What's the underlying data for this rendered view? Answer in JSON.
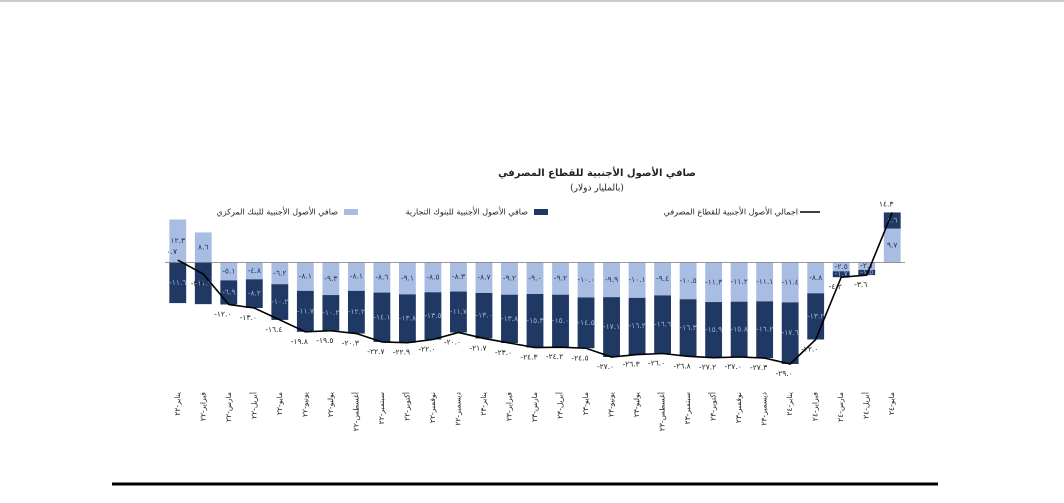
{
  "chart_data": {
    "type": "stacked-bar-line",
    "title": "صافي الأصول الأجنبية للقطاع المصرفي",
    "subtitle": "(بالمليار دولار)",
    "categories": [
      "يناير-٢٢",
      "فبراير-٢٢",
      "مارس-٢٢",
      "أبريل-٢٢",
      "مايو-٢٢",
      "يونيو-٢٢",
      "يوليو-٢٢",
      "أغسطس-٢٢",
      "سبتمبر-٢٢",
      "أكتوبر-٢٢",
      "نوفمبر-٢٢",
      "ديسمبر-٢٢",
      "يناير-٢٣",
      "فبراير-٢٣",
      "مارس-٢٣",
      "أبريل-٢٣",
      "مايو-٢٣",
      "يونيو-٢٣",
      "يوليو-٢٣",
      "أغسطس-٢٣",
      "سبتمبر-٢٣",
      "أكتوبر-٢٣",
      "نوفمبر-٢٣",
      "ديسمبر-٢٣",
      "يناير-٢٤",
      "فبراير-٢٤",
      "مارس-٢٤",
      "أبريل-٢٤",
      "مايو-٢٤"
    ],
    "series": [
      {
        "name": "صافي الأصول الأجنبية للبنك المركزي",
        "kind": "bar",
        "color": "#a9bde3",
        "values": [
          12.3,
          8.6,
          -5.1,
          -4.8,
          -6.2,
          -8.1,
          -9.3,
          -8.1,
          -8.6,
          -9.1,
          -8.5,
          -8.3,
          -8.7,
          -9.2,
          -9.0,
          -9.2,
          -10.0,
          -9.9,
          -10.1,
          -9.4,
          -10.5,
          -11.3,
          -11.2,
          -11.1,
          -11.4,
          -8.8,
          -2.5,
          -2.1,
          9.7
        ],
        "value_labels": [
          "١٢.٣",
          "٨.٦",
          "-٥.١",
          "-٤.٨",
          "-٦.٢",
          "-٨.١",
          "-٩.٣",
          "-٨.١",
          "-٨.٦",
          "-٩.١",
          "-٨.٥",
          "-٨.٣",
          "-٨.٧",
          "-٩.٢",
          "-٩.٠",
          "-٩.٢",
          "-١٠.٠",
          "-٩.٩",
          "-١٠.١",
          "-٩.٤",
          "-١٠.٥",
          "-١١.٣",
          "-١١.٢",
          "-١١.١",
          "-١١.٤",
          "-٨.٨",
          "-٢.٥",
          "-٢.١",
          "٩.٧"
        ]
      },
      {
        "name": "صافي الأصول الأجنبية للبنوك التجارية",
        "kind": "bar",
        "color": "#1f3864",
        "values": [
          -11.6,
          -11.9,
          -6.9,
          -8.2,
          -10.2,
          -11.7,
          -10.2,
          -12.2,
          -14.1,
          -13.8,
          -13.5,
          -11.7,
          -13.0,
          -13.8,
          -15.3,
          -15.0,
          -14.5,
          -17.1,
          -16.2,
          -16.6,
          -16.3,
          -15.9,
          -15.8,
          -16.2,
          -17.6,
          -13.2,
          -1.7,
          -1.5,
          4.6
        ],
        "value_labels": [
          "-١١.٦",
          "-١١.٩",
          "-٦.٩",
          "-٨.٢",
          "-١٠.٢",
          "-١١.٧",
          "-١٠.٢",
          "-١٢.٢",
          "-١٤.١",
          "-١٣.٨",
          "-١٣.٥",
          "-١١.٧",
          "-١٣.٠",
          "-١٣.٨",
          "-١٥.٣",
          "-١٥.٠",
          "-١٤.٥",
          "-١٧.١",
          "-١٦.٢",
          "-١٦.٦",
          "-١٦.٣",
          "-١٥.٩",
          "-١٥.٨",
          "-١٦.٢",
          "-١٧.٦",
          "-١٣.٢",
          "-١.٧",
          "-١.٥",
          "٤.٦"
        ]
      },
      {
        "name": "اجمالي الأصول الأجنبية للقطاع المصرفي",
        "kind": "line",
        "color": "#000000",
        "values": [
          0.7,
          -3.3,
          -12.0,
          -13.0,
          -16.4,
          -19.8,
          -19.5,
          -20.3,
          -22.7,
          -22.9,
          -22.0,
          -20.0,
          -21.7,
          -23.0,
          -24.3,
          -24.2,
          -24.5,
          -27.0,
          -26.3,
          -26.0,
          -26.8,
          -27.2,
          -27.0,
          -27.3,
          -29.0,
          -22.0,
          -4.2,
          -3.6,
          14.3
        ],
        "value_labels": [
          "٠.٧",
          "-٣.٣",
          "-١٢.٠",
          "-١٣.٠",
          "-١٦.٤",
          "-١٩.٨",
          "-١٩.٥",
          "-٢٠.٣",
          "-٢٢.٧",
          "-٢٢.٩",
          "-٢٢.٠",
          "-٢٠.٠",
          "-٢١.٧",
          "-٢٣.٠",
          "-٢٤.٣",
          "-٢٤.٢",
          "-٢٤.٥",
          "-٢٧.٠",
          "-٢٦.٣",
          "-٢٦.٠",
          "-٢٦.٨",
          "-٢٧.٢",
          "-٢٧.٠",
          "-٢٧.٣",
          "-٢٩.٠",
          "-٢٢.٠",
          "-٤.٢",
          "-٣.٦",
          "١٤.٣"
        ]
      }
    ],
    "ylim": [
      -33,
      15
    ]
  }
}
